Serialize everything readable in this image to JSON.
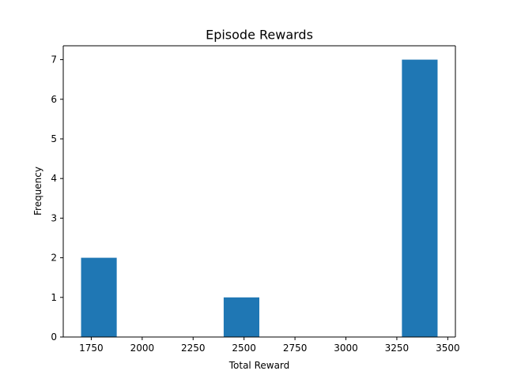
{
  "chart_data": {
    "type": "bar",
    "title": "Episode Rewards",
    "xlabel": "Total Reward",
    "ylabel": "Frequency",
    "bins": [
      {
        "start": 1700,
        "end": 1875,
        "count": 2
      },
      {
        "start": 1875,
        "end": 2050,
        "count": 0
      },
      {
        "start": 2050,
        "end": 2225,
        "count": 0
      },
      {
        "start": 2225,
        "end": 2400,
        "count": 0
      },
      {
        "start": 2400,
        "end": 2575,
        "count": 1
      },
      {
        "start": 2575,
        "end": 2750,
        "count": 0
      },
      {
        "start": 2750,
        "end": 2925,
        "count": 0
      },
      {
        "start": 2925,
        "end": 3100,
        "count": 0
      },
      {
        "start": 3100,
        "end": 3275,
        "count": 0
      },
      {
        "start": 3275,
        "end": 3450,
        "count": 7
      }
    ],
    "xlim": [
      1612.5,
      3537.5
    ],
    "ylim": [
      0,
      7.35
    ],
    "xticks": [
      1750,
      2000,
      2250,
      2500,
      2750,
      3000,
      3250,
      3500
    ],
    "xtick_labels": [
      "1750",
      "2000",
      "2250",
      "2500",
      "2750",
      "3000",
      "3250",
      "3500"
    ],
    "yticks": [
      0,
      1,
      2,
      3,
      4,
      5,
      6,
      7
    ],
    "ytick_labels": [
      "0",
      "1",
      "2",
      "3",
      "4",
      "5",
      "6",
      "7"
    ],
    "grid": false,
    "bar_color": "#1f77b4"
  }
}
